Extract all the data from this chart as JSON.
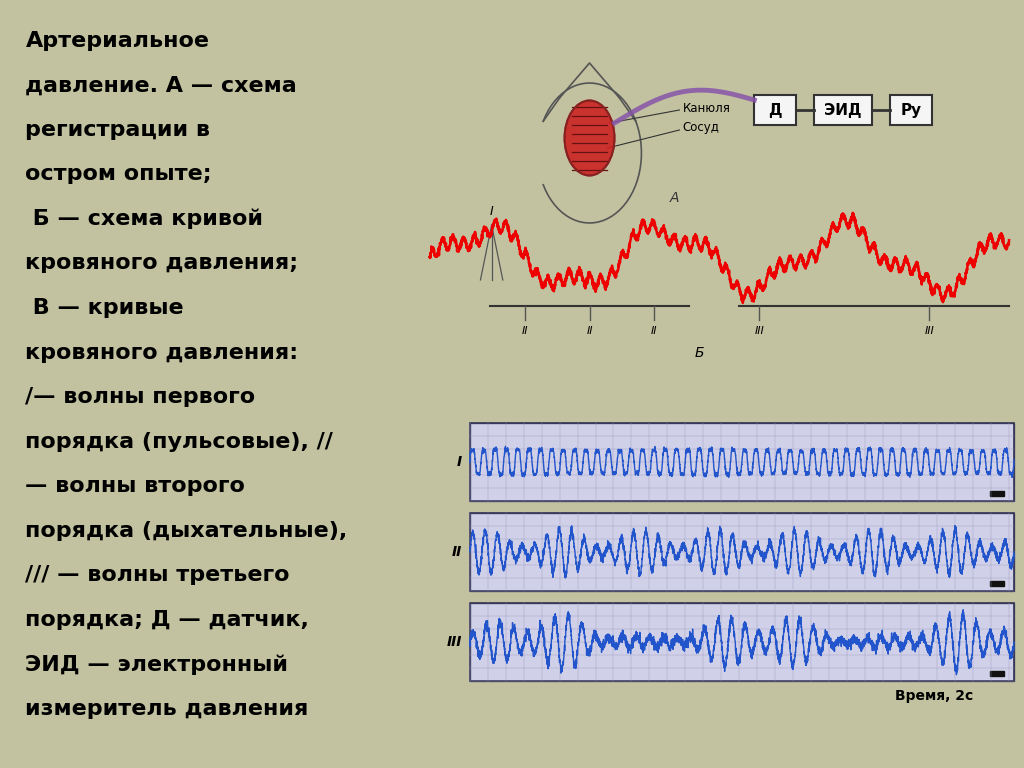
{
  "background_color": "#c2c2a0",
  "panel_bg": "#ffffff",
  "text_color": "#000000",
  "red_line_color": "#ee0000",
  "blue_line_color": "#2255cc",
  "grid_color": "#aaaacc",
  "wave_bg_color": "#d0d0e8",
  "title_lines": [
    "Артериальное",
    "давление. А — схема",
    "регистрации в",
    "остром опыте;",
    " Б — схема кривой",
    "кровяного давления;",
    " В — кривые",
    "кровяного давления:",
    "/— волны первого",
    "порядка (пульсовые), //",
    "— волны второго",
    "порядка (дыхательные),",
    "/// — волны третьего",
    "порядка; Д — датчик,",
    "ЭИД — электронный",
    "измеритель давления"
  ]
}
